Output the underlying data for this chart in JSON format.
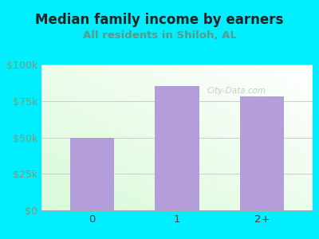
{
  "title": "Median family income by earners",
  "subtitle": "All residents in Shiloh, AL",
  "categories": [
    "0",
    "1",
    "2+"
  ],
  "values": [
    50000,
    85000,
    78000
  ],
  "bar_color": "#b39ddb",
  "background_outer": "#00eeff",
  "background_inner": "#ffffff",
  "title_color": "#222222",
  "subtitle_color": "#5a9a8a",
  "tick_color": "#7a9a7a",
  "title_fontsize": 12,
  "subtitle_fontsize": 9.5,
  "ylim": [
    0,
    100000
  ],
  "yticks": [
    0,
    25000,
    50000,
    75000,
    100000
  ],
  "ytick_labels": [
    "$0",
    "$25k",
    "$50k",
    "$75k",
    "$100k"
  ],
  "watermark": "City-Data.com"
}
